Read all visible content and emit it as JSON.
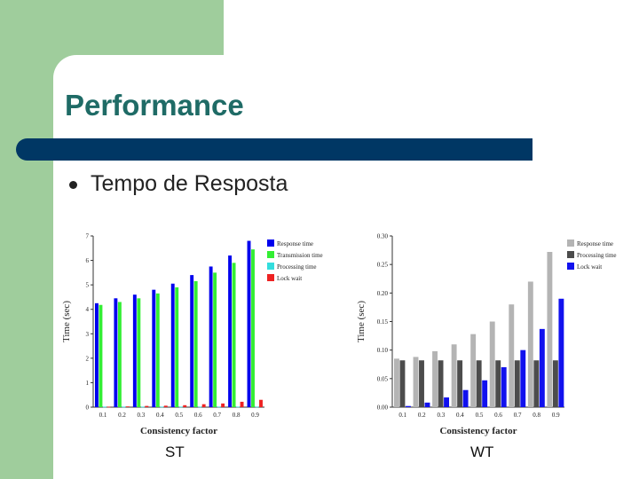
{
  "slide": {
    "title": "Performance",
    "bullet": "Tempo de Resposta",
    "captions": [
      "ST",
      "WT"
    ]
  },
  "colors": {
    "title": "#1f6b66",
    "title_bar": "#003764",
    "background_accent": "#9fcd9c"
  },
  "chart_data": [
    {
      "type": "bar",
      "title": "",
      "xlabel": "Consistency factor",
      "ylabel": "Time (sec)",
      "ylim": [
        0,
        7
      ],
      "yticks": [
        "0",
        "1",
        "2",
        "3",
        "4",
        "5",
        "6",
        "7"
      ],
      "categories": [
        "0.1",
        "0.2",
        "0.3",
        "0.4",
        "0.5",
        "0.6",
        "0.7",
        "0.8",
        "0.9"
      ],
      "legend": "top-right",
      "grid": false,
      "series": [
        {
          "name": "Response time",
          "color": "#0000ee",
          "values": [
            4.25,
            4.45,
            4.6,
            4.8,
            5.05,
            5.4,
            5.75,
            6.2,
            6.8
          ]
        },
        {
          "name": "Transmission time",
          "color": "#33ee33",
          "values": [
            4.18,
            4.3,
            4.45,
            4.65,
            4.9,
            5.15,
            5.5,
            5.9,
            6.45
          ]
        },
        {
          "name": "Processing time",
          "color": "#33dddd",
          "values": [
            0.02,
            0.02,
            0.02,
            0.02,
            0.02,
            0.02,
            0.02,
            0.02,
            0.02
          ]
        },
        {
          "name": "Lock wait",
          "color": "#ee2222",
          "values": [
            0.02,
            0.03,
            0.05,
            0.06,
            0.08,
            0.12,
            0.15,
            0.22,
            0.3
          ]
        }
      ]
    },
    {
      "type": "bar",
      "title": "",
      "xlabel": "Consistency factor",
      "ylabel": "Time (sec)",
      "ylim": [
        0,
        0.3
      ],
      "yticks": [
        "0.00",
        "0.05",
        "0.10",
        "0.15",
        "0.20",
        "0.25",
        "0.30"
      ],
      "categories": [
        "0.1",
        "0.2",
        "0.3",
        "0.4",
        "0.5",
        "0.6",
        "0.7",
        "0.8",
        "0.9"
      ],
      "legend": "top-right",
      "grid": false,
      "series": [
        {
          "name": "Response time",
          "color": "#b4b4b4",
          "values": [
            0.085,
            0.088,
            0.098,
            0.11,
            0.128,
            0.15,
            0.18,
            0.22,
            0.272
          ]
        },
        {
          "name": "Processing time",
          "color": "#4c4c4c",
          "values": [
            0.082,
            0.082,
            0.082,
            0.082,
            0.082,
            0.082,
            0.082,
            0.082,
            0.082
          ]
        },
        {
          "name": "Lock wait",
          "color": "#1111ee",
          "values": [
            0.002,
            0.008,
            0.017,
            0.03,
            0.047,
            0.07,
            0.1,
            0.137,
            0.19
          ]
        }
      ]
    }
  ]
}
